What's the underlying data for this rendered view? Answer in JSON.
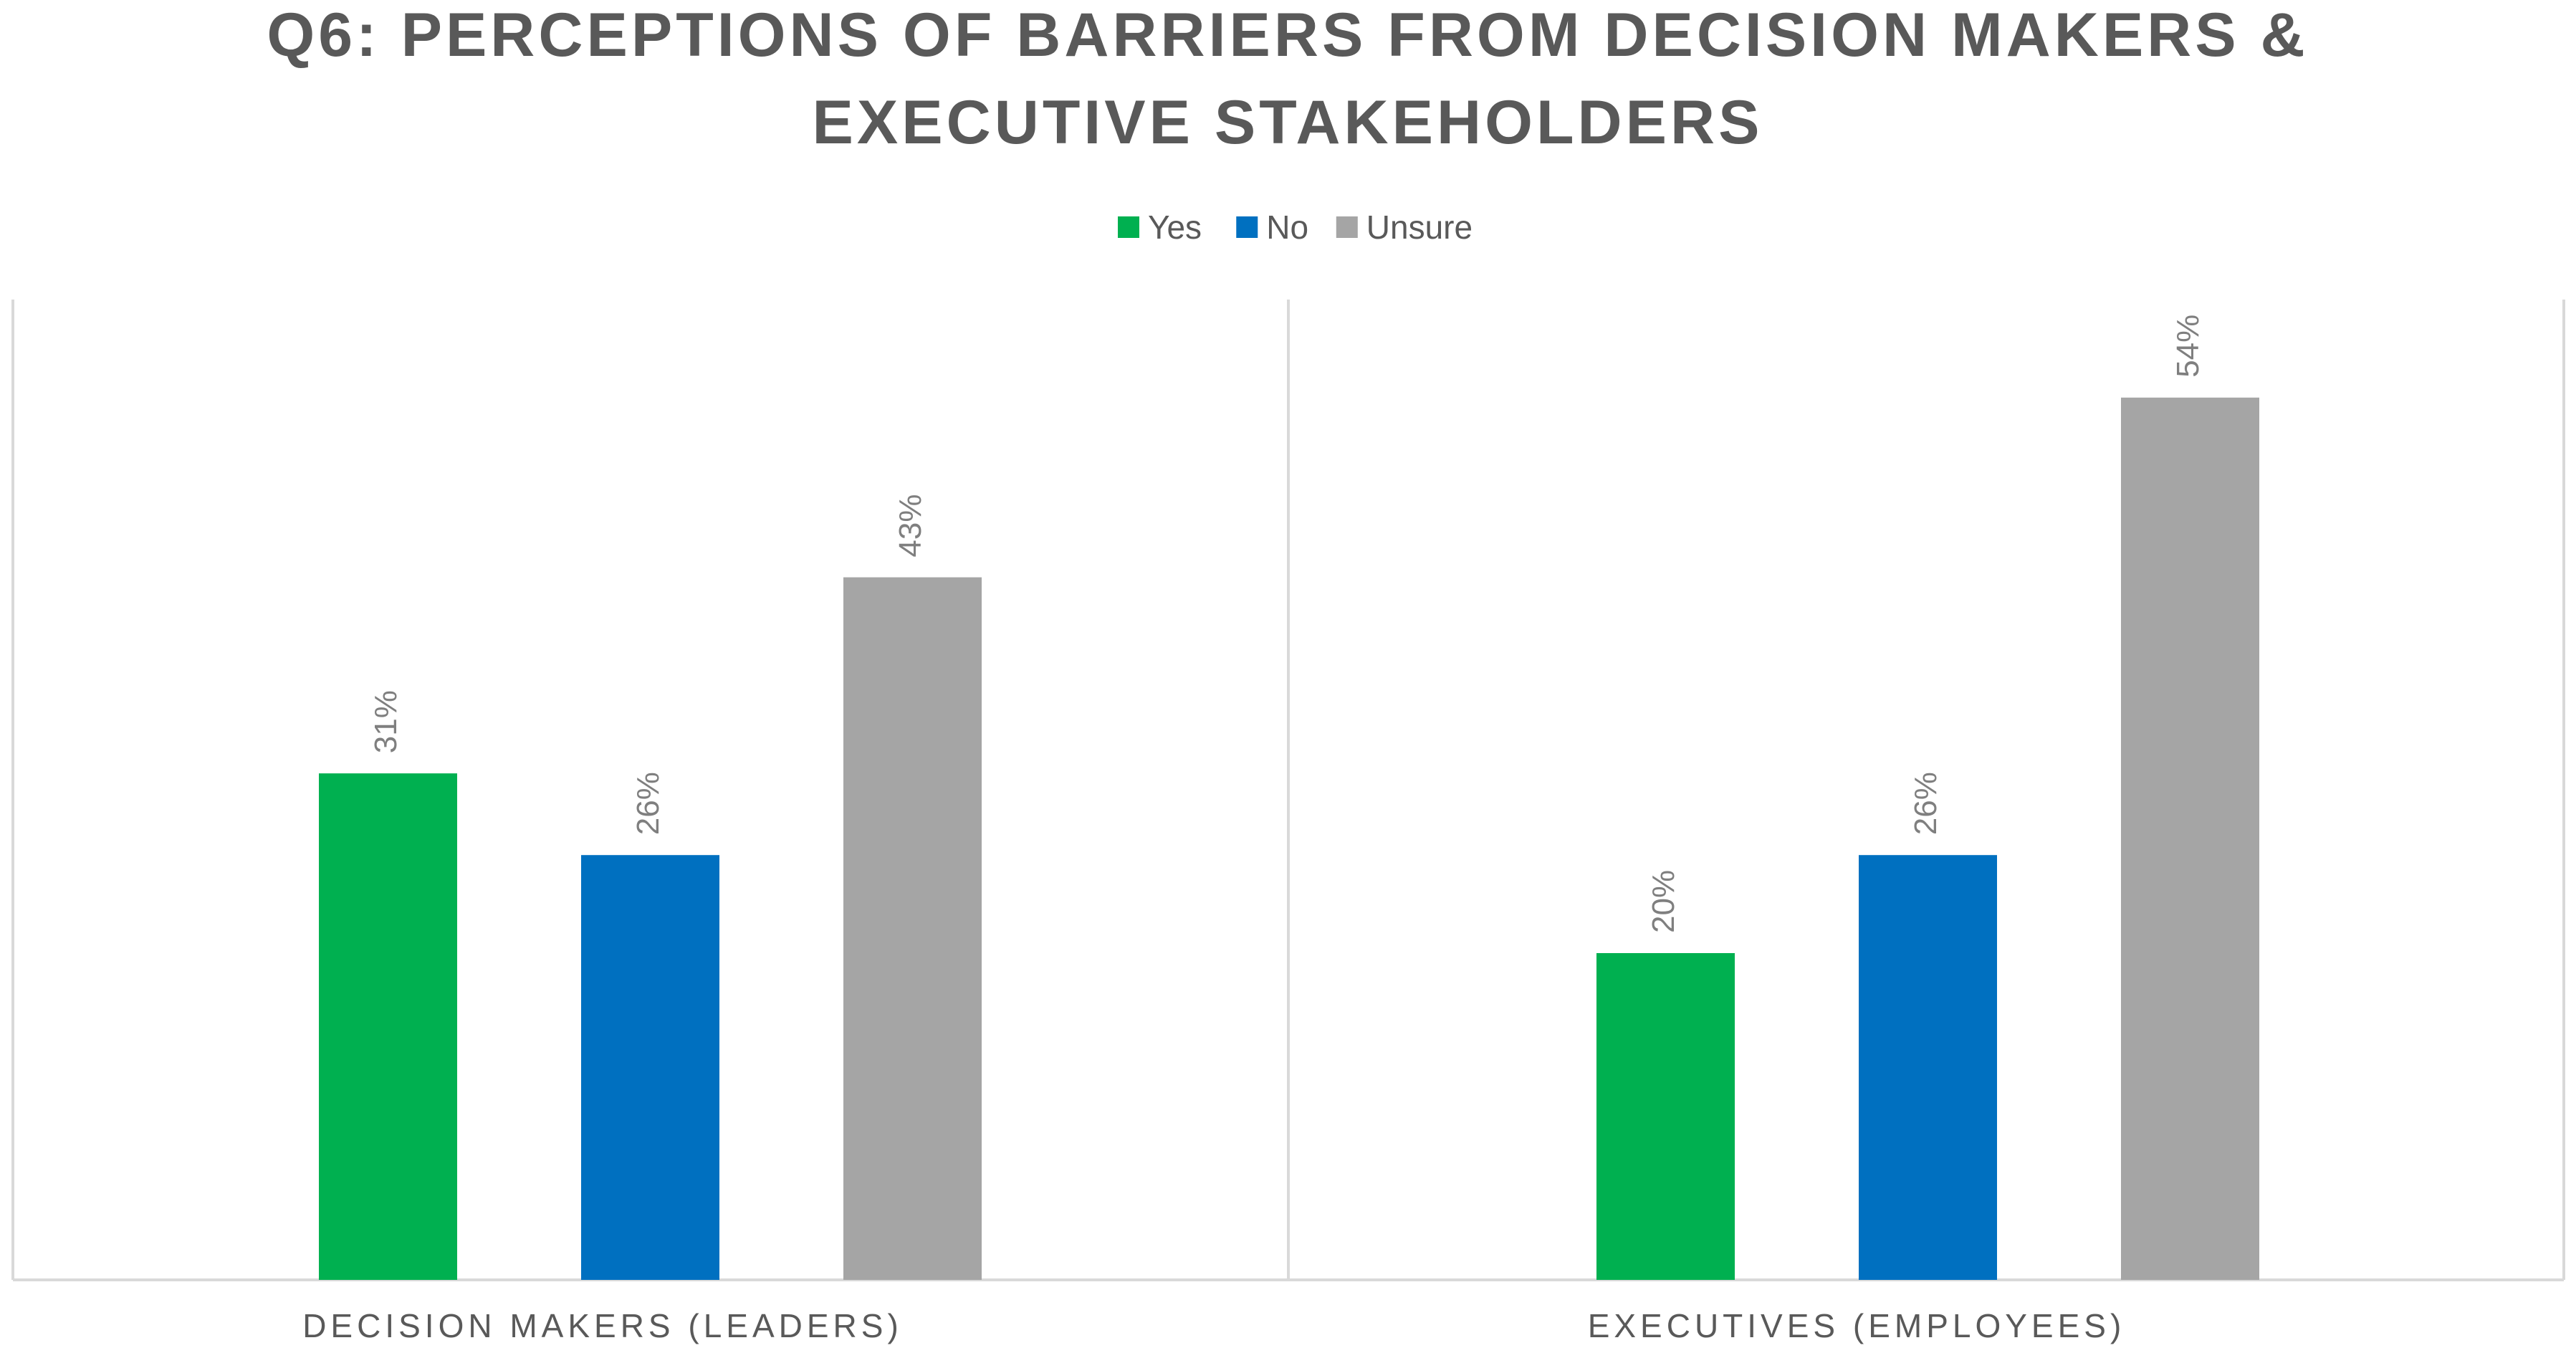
{
  "chart_data": {
    "type": "bar",
    "title_lines": [
      "Q6: PERCEPTIONS OF BARRIERS FROM DECISION MAKERS &",
      "EXECUTIVE STAKEHOLDERS"
    ],
    "categories": [
      "DECISION MAKERS (LEADERS)",
      "EXECUTIVES (EMPLOYEES)"
    ],
    "series": [
      {
        "name": "Yes",
        "values": [
          31,
          20
        ],
        "labels": [
          "31%",
          "20%"
        ],
        "color": "#00b050"
      },
      {
        "name": "No",
        "values": [
          26,
          26
        ],
        "labels": [
          "26%",
          "26%"
        ],
        "color": "#0070c0"
      },
      {
        "name": "Unsure",
        "values": [
          43,
          54
        ],
        "labels": [
          "43%",
          "54%"
        ],
        "color": "#a5a5a5"
      }
    ],
    "ylim": [
      0,
      60
    ],
    "grid": false,
    "legend_position": "top-center",
    "colors": {
      "title": "#595959",
      "text": "#595959",
      "axis": "#d9d9d9",
      "data_label": "#7f7f7f"
    }
  }
}
